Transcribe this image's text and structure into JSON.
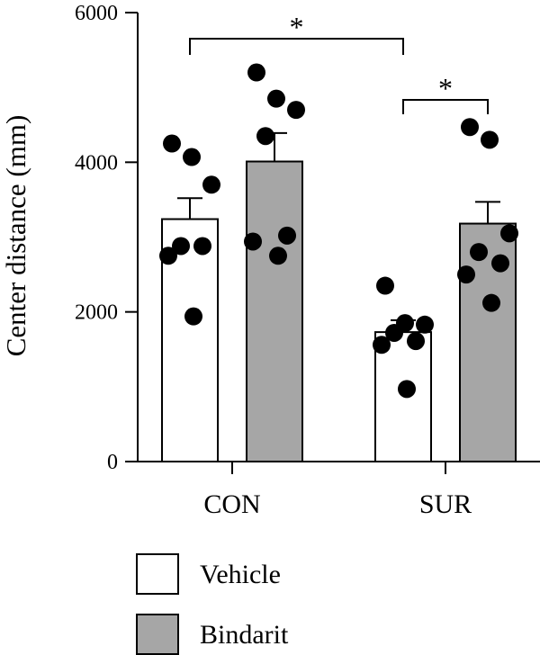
{
  "chart_data": {
    "type": "bar",
    "ylabel": "Center distance (mm)",
    "ylim": [
      0,
      6000
    ],
    "yticks": [
      0,
      2000,
      4000,
      6000
    ],
    "categories": [
      "CON",
      "SUR"
    ],
    "series": [
      {
        "name": "Vehicle",
        "color": "#ffffff",
        "values": [
          3240,
          1730
        ],
        "errors": [
          280,
          160
        ],
        "points": [
          [
            4250,
            4070,
            3700,
            2880,
            2880,
            2750,
            1940
          ],
          [
            2350,
            1850,
            1830,
            1720,
            1610,
            1560,
            970
          ]
        ]
      },
      {
        "name": "Bindarit",
        "color": "#a6a6a6",
        "values": [
          4010,
          3180
        ],
        "errors": [
          380,
          290
        ],
        "points": [
          [
            5200,
            4850,
            4700,
            4350,
            3020,
            2940,
            2750
          ],
          [
            4470,
            4300,
            3050,
            2800,
            2650,
            2500,
            2120
          ]
        ]
      }
    ],
    "annotations": [
      {
        "text": "*",
        "from": "CON Vehicle",
        "to": "SUR Vehicle"
      },
      {
        "text": "*",
        "from": "SUR Vehicle",
        "to": "SUR Bindarit"
      }
    ],
    "legend_position": "bottom-left"
  }
}
